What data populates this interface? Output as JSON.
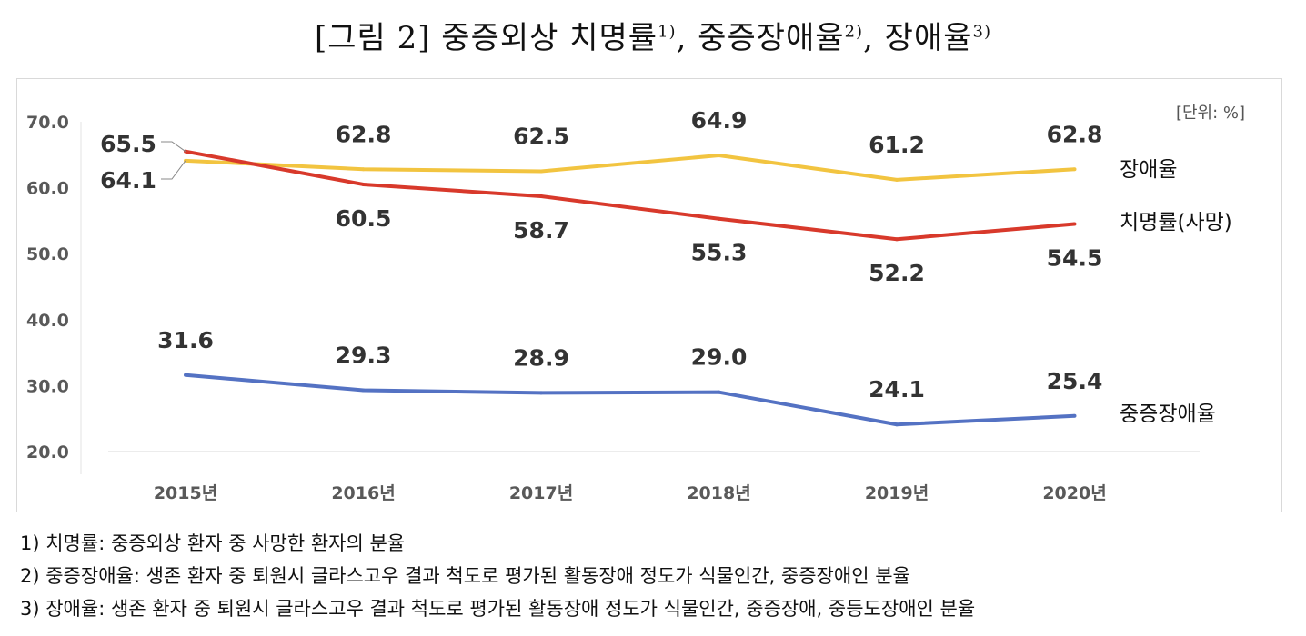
{
  "title": {
    "main": "[그림 2] 중증외상 치명률",
    "sup1": "1)",
    "sep1": ", 중증장애율",
    "sup2": "2)",
    "sep2": ", 장애율",
    "sup3": "3)"
  },
  "chart_data": {
    "type": "line",
    "unit_label": "[단위: %]",
    "categories": [
      "2015년",
      "2016년",
      "2017년",
      "2018년",
      "2019년",
      "2020년"
    ],
    "ylim": [
      20,
      70
    ],
    "yticks": [
      "70.0",
      "60.0",
      "50.0",
      "40.0",
      "30.0",
      "20.0"
    ],
    "grid": false,
    "legend": "right (labels at line ends)",
    "series": [
      {
        "name": "장애율",
        "color": "#f2c440",
        "values": [
          64.1,
          62.8,
          62.5,
          64.9,
          61.2,
          62.8
        ],
        "labels": [
          "64.1",
          "62.8",
          "62.5",
          "64.9",
          "61.2",
          "62.8"
        ]
      },
      {
        "name": "치명률(사망)",
        "color": "#d8392b",
        "values": [
          65.5,
          60.5,
          58.7,
          55.3,
          52.2,
          54.5
        ],
        "labels": [
          "65.5",
          "60.5",
          "58.7",
          "55.3",
          "52.2",
          "54.5"
        ]
      },
      {
        "name": "중증장애율",
        "color": "#5472c3",
        "values": [
          31.6,
          29.3,
          28.9,
          29.0,
          24.1,
          25.4
        ],
        "labels": [
          "31.6",
          "29.3",
          "28.9",
          "29.0",
          "24.1",
          "25.4"
        ]
      }
    ]
  },
  "notes": [
    "1) 치명률: 중증외상 환자 중 사망한 환자의 분율",
    "2) 중증장애율: 생존 환자 중 퇴원시 글라스고우 결과 척도로 평가된 활동장애 정도가 식물인간, 중증장애인 분율",
    "3) 장애율: 생존 환자 중 퇴원시 글라스고우 결과 척도로 평가된 활동장애 정도가 식물인간, 중증장애, 중등도장애인 분율"
  ]
}
